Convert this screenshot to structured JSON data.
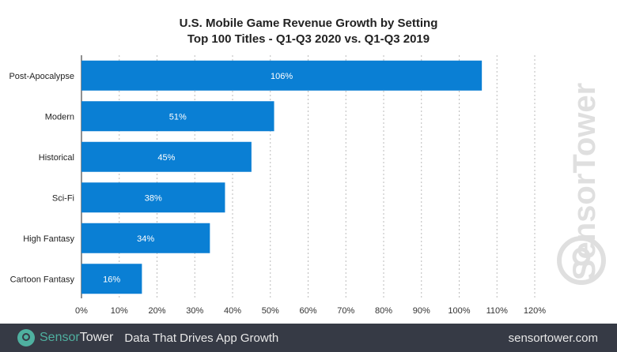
{
  "chart_data": {
    "type": "bar",
    "orientation": "horizontal",
    "title": "U.S. Mobile Game Revenue Growth by Setting",
    "subtitle": "Top 100 Titles - Q1-Q3 2020 vs. Q1-Q3 2019",
    "categories": [
      "Post-Apocalypse",
      "Modern",
      "Historical",
      "Sci-Fi",
      "High Fantasy",
      "Cartoon Fantasy"
    ],
    "values": [
      106,
      51,
      45,
      38,
      34,
      16
    ],
    "data_labels": [
      "106%",
      "51%",
      "45%",
      "38%",
      "34%",
      "16%"
    ],
    "xlim": [
      0,
      120
    ],
    "xticks": [
      "0%",
      "10%",
      "20%",
      "30%",
      "40%",
      "50%",
      "60%",
      "70%",
      "80%",
      "90%",
      "100%",
      "110%",
      "120%"
    ],
    "grid": "vertical dotted",
    "bar_color": "#0a7fd4"
  },
  "watermark": "SensorTower",
  "footer": {
    "brand_a": "Sensor",
    "brand_b": "Tower",
    "tagline": "Data That Drives App Growth",
    "url": "sensortower.com",
    "accent": "#4fb0a0"
  }
}
